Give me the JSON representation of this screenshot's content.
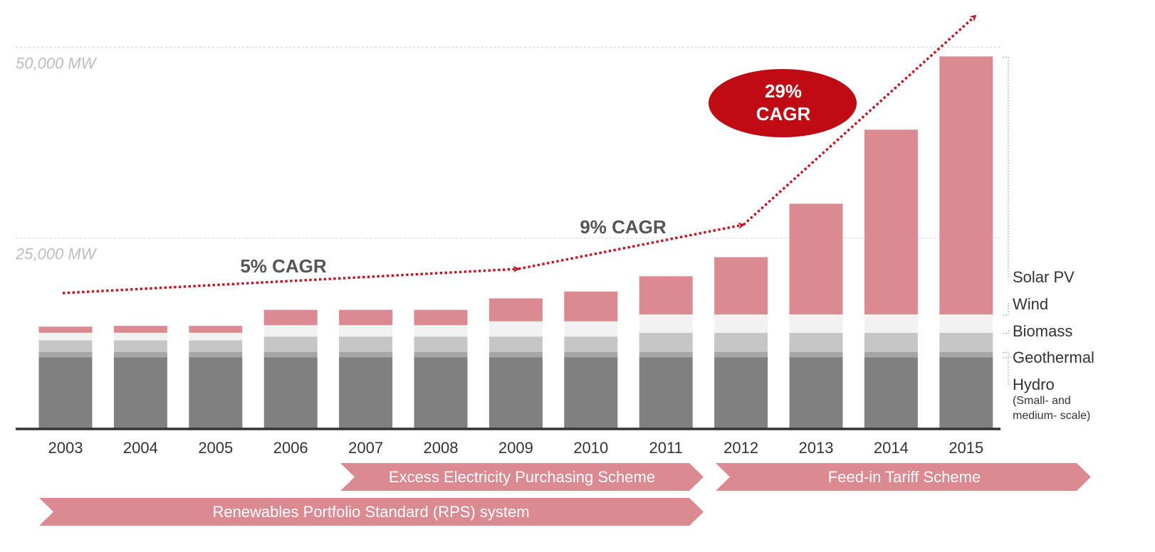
{
  "chart_data": {
    "type": "bar",
    "stacked": true,
    "categories": [
      "2003",
      "2004",
      "2005",
      "2006",
      "2007",
      "2008",
      "2009",
      "2010",
      "2011",
      "2012",
      "2013",
      "2014",
      "2015"
    ],
    "y_unit": "MW",
    "ylim": [
      0,
      55000
    ],
    "yticks": [
      {
        "value": 25000,
        "label": "25,000 MW"
      },
      {
        "value": 50000,
        "label": "50,000 MW"
      }
    ],
    "grid": true,
    "series": [
      {
        "name": "Hydro",
        "note": "(Small- and medium- scale)",
        "color": "#808080",
        "values": [
          9400,
          9400,
          9400,
          9400,
          9400,
          9400,
          9400,
          9400,
          9400,
          9400,
          9400,
          9400,
          9400
        ]
      },
      {
        "name": "Geothermal",
        "color": "#a6a6a6",
        "values": [
          700,
          700,
          700,
          700,
          700,
          700,
          700,
          700,
          700,
          700,
          700,
          700,
          700
        ]
      },
      {
        "name": "Biomass",
        "color": "#c6c6c6",
        "values": [
          1500,
          1500,
          1500,
          2000,
          2000,
          2000,
          2000,
          2000,
          2500,
          2500,
          2500,
          2500,
          2500
        ]
      },
      {
        "name": "Wind",
        "color": "#f2f2f2",
        "values": [
          1000,
          1000,
          1000,
          1500,
          1500,
          1500,
          2000,
          2000,
          2400,
          2400,
          2400,
          2400,
          2400
        ]
      },
      {
        "name": "Solar PV",
        "color": "#dc8a92",
        "values": [
          800,
          900,
          900,
          2000,
          2000,
          2000,
          3000,
          3900,
          5000,
          7500,
          14500,
          24200,
          33800
        ]
      }
    ],
    "annotations": [
      {
        "label": "5% CAGR",
        "from": "2003",
        "to": "2009",
        "style": "plain"
      },
      {
        "label": "9% CAGR",
        "from": "2009",
        "to": "2012",
        "style": "plain"
      },
      {
        "label": "29%",
        "label2": "CAGR",
        "from": "2012",
        "to": "2015",
        "style": "bubble"
      }
    ],
    "schemes": [
      {
        "label": "Excess Electricity Purchasing Scheme",
        "from": "2007",
        "to": "2011"
      },
      {
        "label": "Feed-in Tariff Scheme",
        "from": "2012",
        "to": "2015"
      },
      {
        "label": "Renewables Portfolio Standard (RPS) system",
        "from": "2003",
        "to": "2011"
      }
    ]
  },
  "colors": {
    "axis": "#333333",
    "grid": "#d9d9d9",
    "arrow": "#c8101e",
    "bubble": "#c00a14",
    "scheme": "#dc8a92"
  }
}
